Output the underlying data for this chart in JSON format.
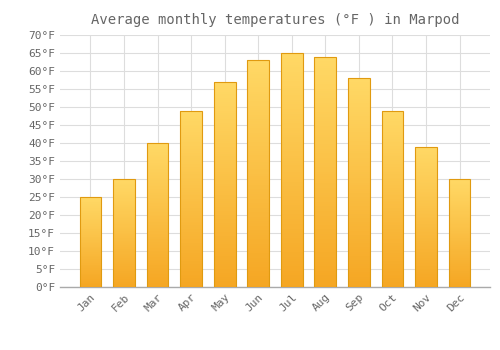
{
  "title": "Average monthly temperatures (°F ) in Marpod",
  "months": [
    "Jan",
    "Feb",
    "Mar",
    "Apr",
    "May",
    "Jun",
    "Jul",
    "Aug",
    "Sep",
    "Oct",
    "Nov",
    "Dec"
  ],
  "values": [
    25,
    30,
    40,
    49,
    57,
    63,
    65,
    64,
    58,
    49,
    39,
    30
  ],
  "bar_color_bottom": "#F5A623",
  "bar_color_top": "#FFD966",
  "bar_edge_color": "#E09A10",
  "background_color": "#FFFFFF",
  "grid_color": "#DDDDDD",
  "text_color": "#666666",
  "ylim": [
    0,
    70
  ],
  "ytick_step": 5,
  "title_fontsize": 10,
  "tick_fontsize": 8,
  "font_family": "monospace"
}
